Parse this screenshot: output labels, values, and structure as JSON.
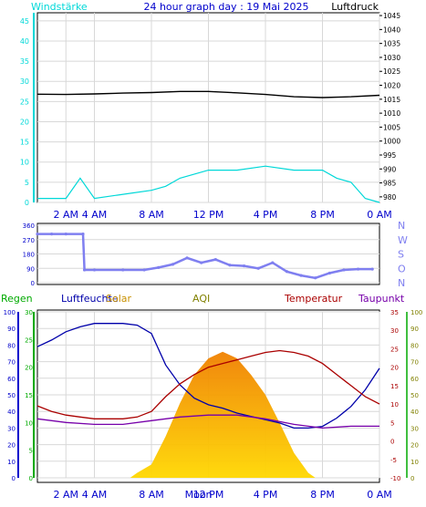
{
  "header": {
    "left_label": "Windstärke",
    "title": "24 hour graph day : 19 Mai 2025",
    "right_label": "Luftdruck"
  },
  "colors": {
    "cyan": "#00d8d8",
    "pressure": "#000000",
    "wind_dir": "#7f7ff0",
    "blue_axis": "#0000cc",
    "green": "#00aa00",
    "humidity": "#0000aa",
    "solar": "#f0b000",
    "aqi": "#808000",
    "temperature": "#aa0000",
    "dewpoint": "#7700aa"
  },
  "chart_data": [
    {
      "type": "line",
      "title": "24 hour graph day : 19 Mai 2025",
      "x_ticks": [
        "2 AM",
        "4 AM",
        "8 AM",
        "12 PM",
        "4 PM",
        "8 PM",
        "0 AM"
      ],
      "left_axis": {
        "label": "Windstärke",
        "ticks": [
          0,
          5,
          10,
          15,
          20,
          25,
          30,
          35,
          40,
          45
        ],
        "range": [
          0,
          47
        ]
      },
      "right_axis": {
        "label": "Luftdruck",
        "ticks": [
          980,
          985,
          990,
          995,
          1000,
          1005,
          1010,
          1015,
          1020,
          1025,
          1030,
          1035,
          1040,
          1045
        ],
        "range": [
          978,
          1046
        ]
      },
      "series": [
        {
          "name": "Luftdruck",
          "axis": "right",
          "x": [
            0,
            2,
            4,
            6,
            8,
            10,
            12,
            14,
            16,
            18,
            20,
            22,
            24
          ],
          "values": [
            1016.8,
            1016.7,
            1016.9,
            1017.2,
            1017.4,
            1017.8,
            1017.8,
            1017.3,
            1016.7,
            1015.9,
            1015.6,
            1015.9,
            1016.4
          ]
        },
        {
          "name": "Windstärke",
          "axis": "left",
          "x": [
            0,
            2,
            3,
            4,
            6,
            8,
            9,
            10,
            12,
            14,
            16,
            18,
            20,
            21,
            22,
            23,
            24
          ],
          "values": [
            1,
            1,
            6,
            1,
            2,
            3,
            4,
            6,
            8,
            8,
            9,
            8,
            8,
            6,
            5,
            1,
            0
          ]
        }
      ]
    },
    {
      "type": "scatter",
      "y_ticks": [
        0,
        90,
        180,
        270,
        360
      ],
      "y_range": [
        0,
        360
      ],
      "direction_labels": [
        "N",
        "W",
        "S",
        "O",
        "N"
      ],
      "series": [
        {
          "name": "Windrichtung",
          "x": [
            0,
            1,
            2,
            3.2,
            3.3,
            4,
            6,
            7.5,
            8.5,
            9.5,
            10.5,
            11.5,
            12.5,
            13.5,
            14.5,
            15.5,
            16.5,
            17.5,
            18.5,
            19.5,
            20.5,
            21.5,
            22.5,
            23.5
          ],
          "values": [
            305,
            305,
            305,
            305,
            80,
            80,
            80,
            80,
            95,
            115,
            155,
            125,
            145,
            110,
            105,
            90,
            125,
            70,
            45,
            30,
            60,
            80,
            85,
            85
          ]
        }
      ]
    },
    {
      "type": "line",
      "legend": [
        "Regen",
        "Luftfeuchte",
        "Solar",
        "AQI",
        "Temperatur",
        "Taupunkt"
      ],
      "x_ticks": [
        "2 AM",
        "4 AM",
        "8 AM",
        "Moon",
        "12 PM",
        "4 PM",
        "8 PM",
        "0 AM"
      ],
      "left_axis": {
        "label": "Luftfeuchte",
        "ticks": [
          0,
          10,
          20,
          30,
          40,
          50,
          60,
          70,
          80,
          90,
          100
        ]
      },
      "left_axis_2": {
        "label": "Regen",
        "ticks": [
          0,
          5,
          10,
          15,
          20,
          25,
          30
        ]
      },
      "right_axis": {
        "label": "Temperatur",
        "ticks": [
          -10,
          -5,
          0,
          5,
          10,
          15,
          20,
          25,
          30,
          35
        ]
      },
      "right_axis_2": {
        "label": "Solar",
        "ticks": [
          0,
          10,
          20,
          30,
          40,
          50,
          60,
          70,
          80,
          90,
          100
        ]
      },
      "series": [
        {
          "name": "Luftfeuchte",
          "x": [
            0,
            1,
            2,
            3,
            4,
            5,
            6,
            7,
            8,
            9,
            10,
            11,
            12,
            13,
            14,
            15,
            16,
            17,
            18,
            19,
            20,
            21,
            22,
            23,
            24
          ],
          "values": [
            79,
            83,
            88,
            91,
            93,
            93,
            93,
            92,
            87,
            68,
            56,
            48,
            44,
            42,
            39,
            37,
            35,
            33,
            30,
            30,
            31,
            36,
            43,
            53,
            66
          ]
        },
        {
          "name": "Temperatur",
          "x": [
            0,
            1,
            2,
            3,
            4,
            5,
            6,
            7,
            8,
            9,
            10,
            11,
            12,
            13,
            14,
            15,
            16,
            17,
            18,
            19,
            20,
            21,
            22,
            23,
            24
          ],
          "values": [
            9.5,
            8,
            7,
            6.5,
            6,
            6,
            6,
            6.5,
            8,
            12,
            15.5,
            18,
            20,
            21,
            22,
            23,
            24,
            24.5,
            24,
            23,
            21,
            18,
            15,
            12,
            10
          ]
        },
        {
          "name": "Taupunkt",
          "x": [
            0,
            2,
            4,
            6,
            8,
            10,
            12,
            14,
            16,
            18,
            20,
            22,
            24
          ],
          "values": [
            6,
            5,
            4.5,
            4.5,
            5.5,
            6.5,
            7,
            7,
            6,
            4.5,
            3.5,
            4,
            4
          ]
        },
        {
          "name": "Solar",
          "x": [
            6.5,
            7,
            8,
            9,
            10,
            11,
            12,
            13,
            14,
            15,
            16,
            17,
            18,
            19,
            19.5
          ],
          "values": [
            0,
            3,
            8,
            25,
            45,
            62,
            72,
            76,
            72,
            62,
            50,
            33,
            15,
            3,
            0
          ]
        }
      ]
    }
  ]
}
